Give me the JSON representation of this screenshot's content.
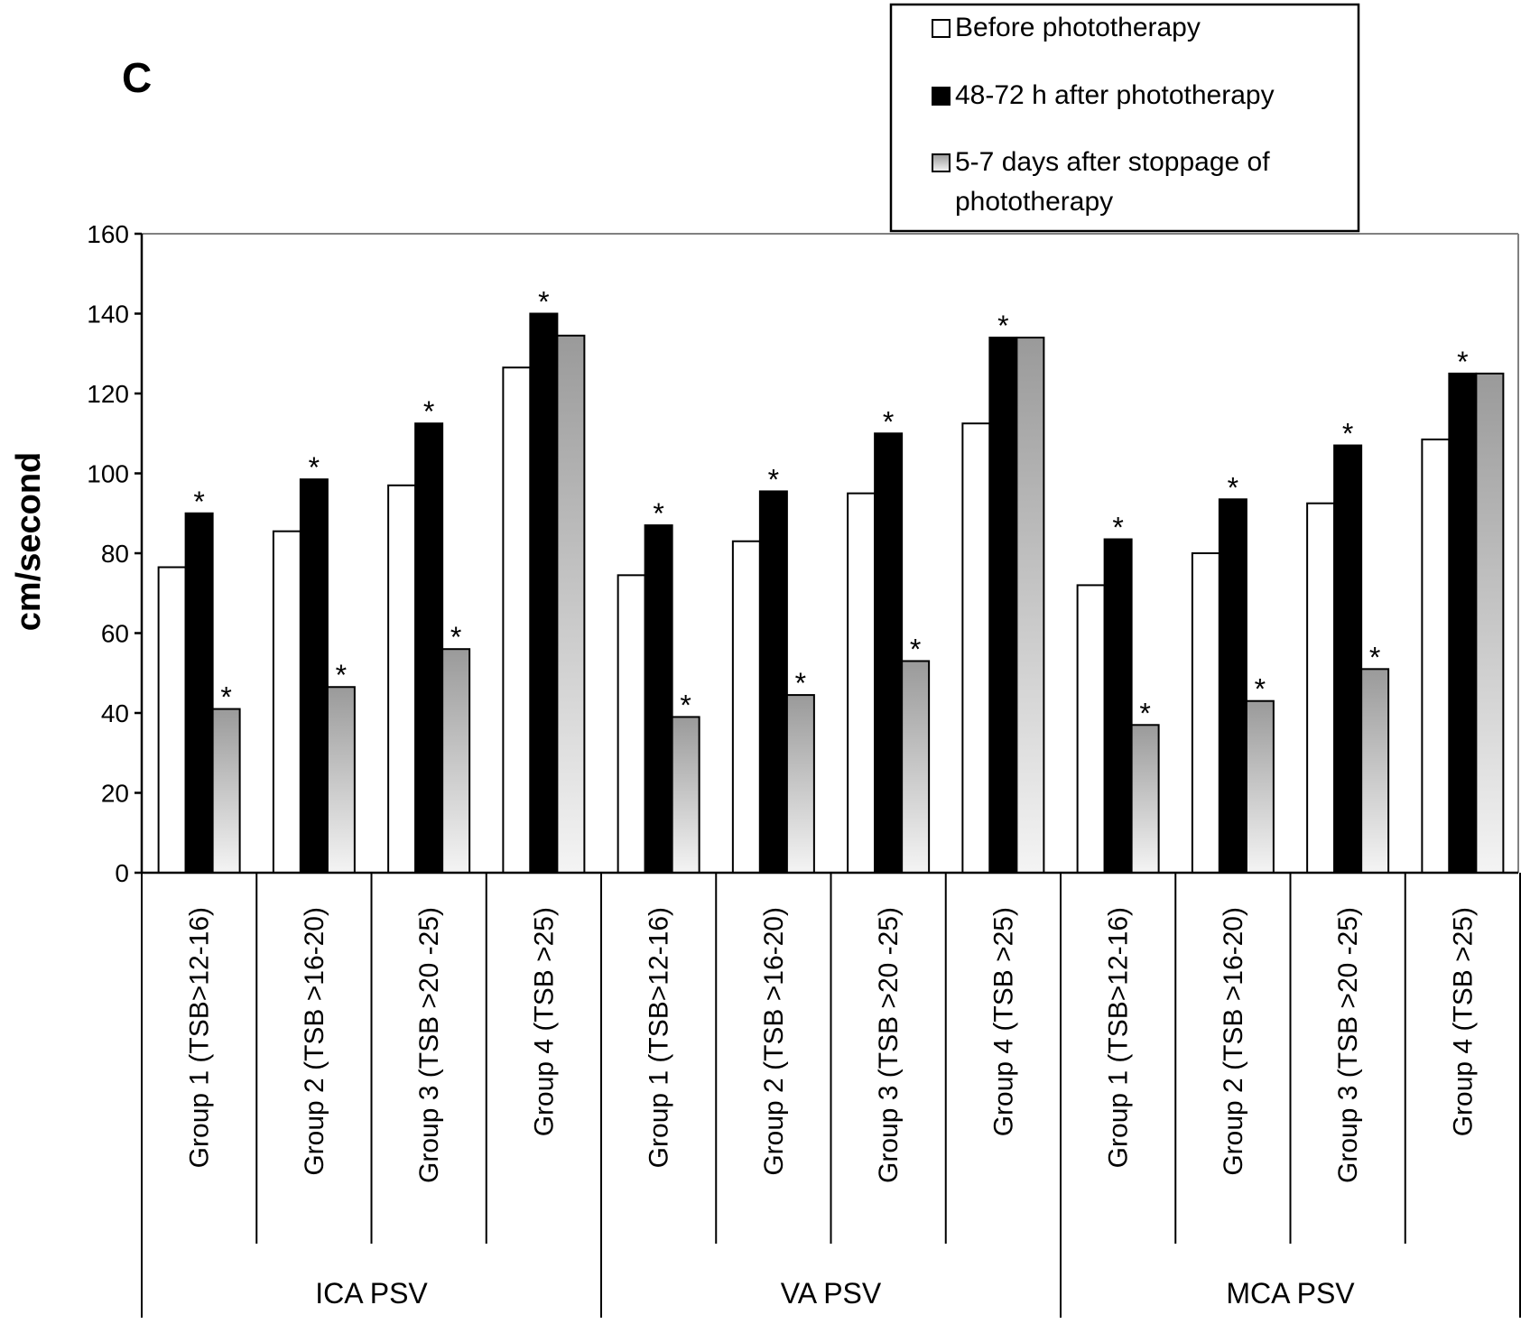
{
  "chart_data": {
    "type": "bar",
    "panel_label": "C",
    "ylabel": "cm/second",
    "ylim": [
      0,
      160
    ],
    "yticks": [
      0,
      20,
      40,
      60,
      80,
      100,
      120,
      140,
      160
    ],
    "grid": false,
    "legend_position": "top-right",
    "groups": [
      "ICA PSV",
      "VA PSV",
      "MCA PSV"
    ],
    "categories": [
      "Group 1 (TSB>12-16)",
      "Group 2 (TSB >16-20)",
      "Group 3 (TSB >20 -25)",
      "Group 4 (TSB >25)",
      "Group 1 (TSB>12-16)",
      "Group 2 (TSB >16-20)",
      "Group 3 (TSB >20 -25)",
      "Group 4 (TSB >25)",
      "Group 1 (TSB>12-16)",
      "Group 2 (TSB >16-20)",
      "Group 3 (TSB >20 -25)",
      "Group 4 (TSB >25)"
    ],
    "series": [
      {
        "name": "Before phototherapy",
        "values": [
          76.5,
          85.5,
          97,
          126.5,
          74.5,
          83,
          95,
          112.5,
          72,
          80,
          92.5,
          108.5
        ],
        "significant": [
          false,
          false,
          false,
          false,
          false,
          false,
          false,
          false,
          false,
          false,
          false,
          false
        ],
        "fill": "#ffffff"
      },
      {
        "name": "48-72 h after phototherapy",
        "values": [
          90,
          98.5,
          112.5,
          140,
          87,
          95.5,
          110,
          134,
          83.5,
          93.5,
          107,
          125
        ],
        "significant": [
          true,
          true,
          true,
          true,
          true,
          true,
          true,
          true,
          true,
          true,
          true,
          true
        ],
        "fill": "#000000"
      },
      {
        "name": "5-7 days after stoppage of phototherapy",
        "values": [
          41,
          46.5,
          56,
          134.5,
          39,
          44.5,
          53,
          134,
          37,
          43,
          51,
          125
        ],
        "significant": [
          true,
          true,
          true,
          false,
          true,
          true,
          true,
          false,
          true,
          true,
          true,
          false
        ],
        "fill": "gradient-gray"
      }
    ],
    "significance_marker": "*"
  }
}
